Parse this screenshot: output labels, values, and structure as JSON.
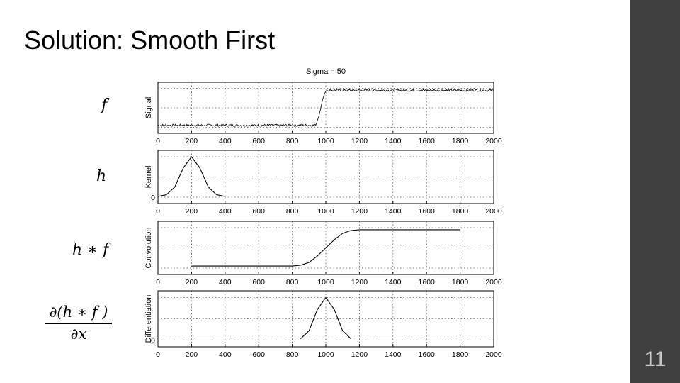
{
  "slide": {
    "title": "Solution: Smooth First",
    "page_number": "11"
  },
  "math_labels": {
    "f": "f",
    "h": "h",
    "h_conv_f": "h ∗ f",
    "deriv_numerator": "∂(h ∗ f )",
    "deriv_denominator": "∂x"
  },
  "chart_data": {
    "type": "line",
    "title": "Sigma = 50",
    "grid": true,
    "xlim": [
      0,
      2000
    ],
    "x_ticks": [
      0,
      200,
      400,
      600,
      800,
      1000,
      1200,
      1400,
      1600,
      1800,
      2000
    ],
    "panels": [
      {
        "ylabel": "Signal",
        "y_ticks_labels": [],
        "series": [
          {
            "x": [
              0,
              200,
              400,
              600,
              800,
              940,
              960,
              980,
              1000,
              2000
            ],
            "y": [
              0.05,
              0.05,
              0.05,
              0.05,
              0.05,
              0.05,
              0.3,
              0.7,
              0.95,
              0.95
            ],
            "noisy": true
          }
        ]
      },
      {
        "ylabel": "Kernel",
        "y_ticks_labels": [
          "0"
        ],
        "series": [
          {
            "x": [
              0,
              50,
              100,
              150,
              200,
              250,
              300,
              350,
              400
            ],
            "y": [
              0.02,
              0.06,
              0.25,
              0.72,
              1.0,
              0.72,
              0.25,
              0.06,
              0.02
            ]
          }
        ]
      },
      {
        "ylabel": "Convolution",
        "y_ticks_labels": [],
        "series": [
          {
            "x": [
              200,
              400,
              600,
              800,
              850,
              900,
              950,
              1000,
              1050,
              1100,
              1150,
              1200,
              1400,
              1600,
              1800
            ],
            "y": [
              0.05,
              0.05,
              0.05,
              0.05,
              0.07,
              0.14,
              0.3,
              0.5,
              0.7,
              0.86,
              0.93,
              0.95,
              0.95,
              0.95,
              0.95
            ]
          }
        ]
      },
      {
        "ylabel": "Differentiation",
        "y_ticks_labels": [
          "0"
        ],
        "series": [
          {
            "x": [
              850,
              900,
              950,
              1000,
              1050,
              1100,
              1150
            ],
            "y": [
              0.03,
              0.22,
              0.72,
              1.0,
              0.72,
              0.22,
              0.03
            ]
          },
          {
            "x": [
              220,
              320
            ],
            "y": [
              0.0,
              0.0
            ]
          },
          {
            "x": [
              340,
              430
            ],
            "y": [
              0.0,
              0.0
            ]
          },
          {
            "x": [
              1320,
              1460
            ],
            "y": [
              0.0,
              0.0
            ]
          },
          {
            "x": [
              1580,
              1660
            ],
            "y": [
              0.0,
              0.0
            ]
          }
        ]
      }
    ]
  }
}
